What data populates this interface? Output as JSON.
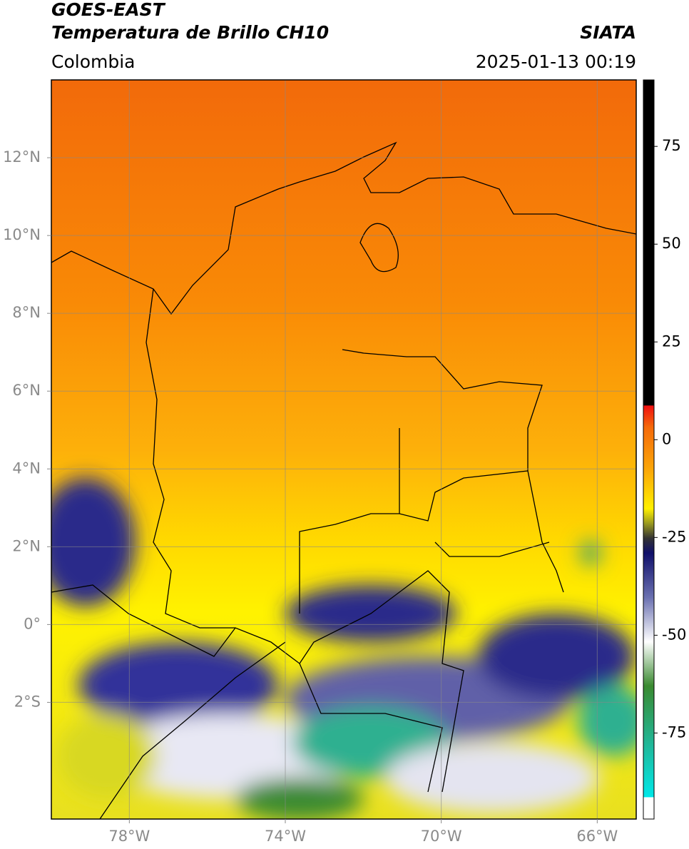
{
  "header": {
    "satellite": "GOES-EAST",
    "product": "Temperatura de Brillo CH10",
    "agency": "SIATA",
    "region": "Colombia",
    "timestamp": "2025-01-13 00:19"
  },
  "map": {
    "lon_range": [
      -80,
      -65
    ],
    "lat_range": [
      -5,
      14
    ],
    "grid": true,
    "lon_ticks": [
      {
        "value": -78,
        "label": "78°W"
      },
      {
        "value": -74,
        "label": "74°W"
      },
      {
        "value": -70,
        "label": "70°W"
      },
      {
        "value": -66,
        "label": "66°W"
      }
    ],
    "lat_ticks": [
      {
        "value": 12,
        "label": "12°N"
      },
      {
        "value": 10,
        "label": "10°N"
      },
      {
        "value": 8,
        "label": "8°N"
      },
      {
        "value": 6,
        "label": "6°N"
      },
      {
        "value": 4,
        "label": "4°N"
      },
      {
        "value": 2,
        "label": "2°N"
      },
      {
        "value": 0,
        "label": "0°"
      },
      {
        "value": -2,
        "label": "2°S"
      }
    ]
  },
  "colorbar": {
    "range": [
      -97,
      92
    ],
    "ticks": [
      75,
      50,
      25,
      0,
      -25,
      -50,
      -75
    ]
  }
}
